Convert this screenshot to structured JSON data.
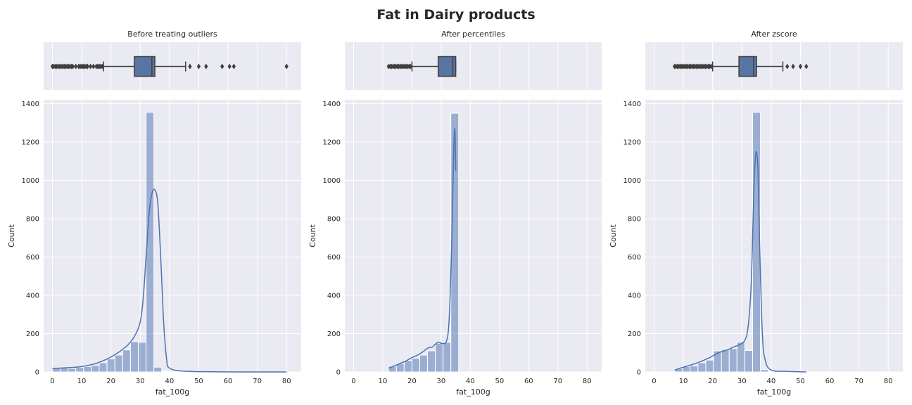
{
  "title": "Fat in Dairy products",
  "chart_data": [
    {
      "type": "histogram",
      "title": "Before treating outliers",
      "xlabel": "fat_100g",
      "ylabel": "Count",
      "xlim": [
        -3,
        85
      ],
      "ylim": [
        0,
        1420
      ],
      "xticks": [
        0,
        10,
        20,
        30,
        40,
        50,
        60,
        70,
        80
      ],
      "yticks": [
        0,
        200,
        400,
        600,
        800,
        1000,
        1200,
        1400
      ],
      "grid": true,
      "bin_width": 2.67,
      "bins": [
        {
          "x0": 0,
          "x1": 2.67,
          "count": 20
        },
        {
          "x0": 2.67,
          "x1": 5.33,
          "count": 22
        },
        {
          "x0": 5.33,
          "x1": 8,
          "count": 18
        },
        {
          "x0": 8,
          "x1": 10.67,
          "count": 24
        },
        {
          "x0": 10.67,
          "x1": 13.33,
          "count": 28
        },
        {
          "x0": 13.33,
          "x1": 16,
          "count": 35
        },
        {
          "x0": 16,
          "x1": 18.67,
          "count": 48
        },
        {
          "x0": 18.67,
          "x1": 21.33,
          "count": 68
        },
        {
          "x0": 21.33,
          "x1": 24,
          "count": 88
        },
        {
          "x0": 24,
          "x1": 26.67,
          "count": 115
        },
        {
          "x0": 26.67,
          "x1": 29.33,
          "count": 158
        },
        {
          "x0": 29.33,
          "x1": 32,
          "count": 155
        },
        {
          "x0": 32,
          "x1": 34.67,
          "count": 1355
        },
        {
          "x0": 34.67,
          "x1": 37.33,
          "count": 25
        },
        {
          "x0": 37.33,
          "x1": 40,
          "count": 3
        },
        {
          "x0": 40,
          "x1": 42.67,
          "count": 1
        },
        {
          "x0": 45.33,
          "x1": 48,
          "count": 1
        },
        {
          "x0": 50.67,
          "x1": 53.33,
          "count": 1
        },
        {
          "x0": 56,
          "x1": 58.67,
          "count": 1
        },
        {
          "x0": 58.67,
          "x1": 61.33,
          "count": 1
        },
        {
          "x0": 61.33,
          "x1": 64,
          "count": 1
        },
        {
          "x0": 77.33,
          "x1": 80,
          "count": 1
        }
      ],
      "kde": {
        "x": [
          0,
          5,
          10,
          15,
          20,
          25,
          28,
          30,
          31,
          32,
          33,
          34,
          35,
          36,
          37,
          38,
          39,
          40,
          45,
          55,
          65,
          80
        ],
        "y": [
          18,
          22,
          28,
          45,
          78,
          130,
          185,
          260,
          380,
          600,
          820,
          930,
          950,
          880,
          600,
          260,
          70,
          20,
          4,
          1,
          0,
          0
        ]
      },
      "boxplot": {
        "whisker_low": 17.5,
        "q1": 28,
        "median": 34,
        "q3": 35,
        "whisker_high": 45.5,
        "fliers": [
          0,
          0.5,
          1,
          1.5,
          2,
          2.5,
          3,
          3.5,
          4,
          4.5,
          5,
          5.5,
          6,
          6.5,
          7,
          8,
          9,
          9.5,
          10,
          10.5,
          11,
          11.5,
          12,
          13,
          14,
          15,
          15.5,
          16,
          16.5,
          17,
          47,
          50,
          52.5,
          58,
          60.5,
          62,
          80
        ]
      }
    },
    {
      "type": "histogram",
      "title": "After percentiles",
      "xlabel": "fat_100g",
      "ylabel": "Count",
      "xlim": [
        -3,
        85
      ],
      "ylim": [
        0,
        1420
      ],
      "xticks": [
        0,
        10,
        20,
        30,
        40,
        50,
        60,
        70,
        80
      ],
      "yticks": [
        0,
        200,
        400,
        600,
        800,
        1000,
        1200,
        1400
      ],
      "grid": true,
      "bin_width": 2.67,
      "bins": [
        {
          "x0": 12,
          "x1": 14.67,
          "count": 30
        },
        {
          "x0": 14.67,
          "x1": 17.33,
          "count": 45
        },
        {
          "x0": 17.33,
          "x1": 20,
          "count": 60
        },
        {
          "x0": 20,
          "x1": 22.67,
          "count": 72
        },
        {
          "x0": 22.67,
          "x1": 25.33,
          "count": 88
        },
        {
          "x0": 25.33,
          "x1": 28,
          "count": 110
        },
        {
          "x0": 28,
          "x1": 30.67,
          "count": 150
        },
        {
          "x0": 30.67,
          "x1": 33.33,
          "count": 155
        },
        {
          "x0": 33.33,
          "x1": 36,
          "count": 1350
        }
      ],
      "kde": {
        "x": [
          12,
          14,
          16,
          18,
          20,
          22,
          24,
          25,
          26,
          27,
          28,
          29,
          30,
          31,
          31.5,
          32,
          32.5,
          33,
          33.5,
          34,
          34.3,
          34.6,
          34.8,
          35
        ],
        "y": [
          20,
          32,
          45,
          58,
          75,
          88,
          108,
          120,
          128,
          130,
          145,
          155,
          150,
          148,
          150,
          170,
          220,
          360,
          600,
          930,
          1150,
          1265,
          1230,
          1050
        ]
      },
      "boxplot": {
        "whisker_low": 20,
        "q1": 29,
        "median": 34,
        "q3": 35,
        "whisker_high": 35,
        "fliers": [
          12,
          12.5,
          13,
          13.5,
          14,
          14.5,
          15,
          15.5,
          16,
          16.5,
          17,
          17.5,
          18,
          18.5,
          19,
          19.5
        ]
      }
    },
    {
      "type": "histogram",
      "title": "After zscore",
      "xlabel": "fat_100g",
      "ylabel": "Count",
      "xlim": [
        -3,
        85
      ],
      "ylim": [
        0,
        1420
      ],
      "xticks": [
        0,
        10,
        20,
        30,
        40,
        50,
        60,
        70,
        80
      ],
      "yticks": [
        0,
        200,
        400,
        600,
        800,
        1000,
        1200,
        1400
      ],
      "grid": true,
      "bin_width": 2.67,
      "bins": [
        {
          "x0": 7,
          "x1": 9.67,
          "count": 18
        },
        {
          "x0": 9.67,
          "x1": 12.33,
          "count": 28
        },
        {
          "x0": 12.33,
          "x1": 15,
          "count": 32
        },
        {
          "x0": 15,
          "x1": 17.67,
          "count": 48
        },
        {
          "x0": 17.67,
          "x1": 20.33,
          "count": 62
        },
        {
          "x0": 20.33,
          "x1": 23,
          "count": 110
        },
        {
          "x0": 23,
          "x1": 25.67,
          "count": 118
        },
        {
          "x0": 25.67,
          "x1": 28.33,
          "count": 122
        },
        {
          "x0": 28.33,
          "x1": 31,
          "count": 155
        },
        {
          "x0": 31,
          "x1": 33.67,
          "count": 112
        },
        {
          "x0": 33.67,
          "x1": 36.33,
          "count": 1355
        },
        {
          "x0": 36.33,
          "x1": 39,
          "count": 12
        },
        {
          "x0": 39,
          "x1": 41.67,
          "count": 3
        },
        {
          "x0": 44.67,
          "x1": 47.33,
          "count": 1
        },
        {
          "x0": 49.67,
          "x1": 52.33,
          "count": 1
        }
      ],
      "kde": {
        "x": [
          7,
          10,
          13,
          16,
          19,
          22,
          25,
          28,
          29,
          30,
          31,
          32,
          33,
          33.5,
          34,
          34.5,
          35,
          35.5,
          36,
          37,
          38,
          40,
          45,
          52
        ],
        "y": [
          10,
          25,
          38,
          55,
          75,
          100,
          115,
          135,
          140,
          150,
          165,
          220,
          400,
          600,
          900,
          1090,
          1150,
          1050,
          700,
          200,
          60,
          10,
          3,
          0
        ]
      },
      "boxplot": {
        "whisker_low": 20,
        "q1": 29,
        "median": 34,
        "q3": 35,
        "whisker_high": 44,
        "fliers": [
          7,
          7.5,
          8,
          8.5,
          9,
          9.5,
          10,
          10.5,
          11,
          11.5,
          12,
          12.5,
          13,
          13.5,
          14,
          14.5,
          15,
          15.5,
          16,
          16.5,
          17,
          17.5,
          18,
          18.5,
          19,
          19.5,
          45.5,
          47.5,
          50,
          52
        ]
      }
    }
  ]
}
